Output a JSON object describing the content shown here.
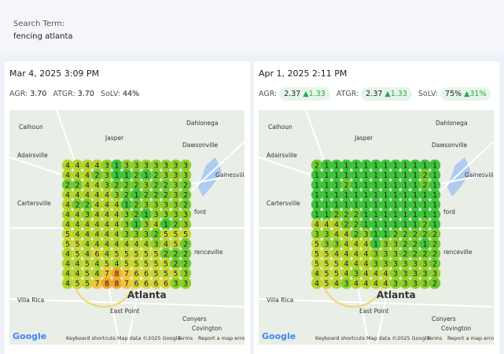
{
  "search": {
    "label": "Search Term:",
    "term": "fencing atlanta"
  },
  "rank_colors": {
    "1": "#3ec43a",
    "2": "#6fcb2e",
    "3": "#8fd12a",
    "4": "#b3d52c",
    "5": "#c6d836",
    "6": "#d9d53c",
    "7": "#f1c53b",
    "8": "#f5a52a"
  },
  "map": {
    "places": [
      "Calhoun",
      "Jasper",
      "Dahlonega",
      "Dawsonville",
      "Adairsville",
      "Gainesville",
      "Cartersville",
      "ford",
      "renceville",
      "Atlanta",
      "East Point",
      "Villa Rica",
      "Conyers",
      "Covington"
    ],
    "footer": [
      "Google",
      "Keyboard shortcuts",
      "Map data ©2025 Google",
      "Terms",
      "Report a map error"
    ]
  },
  "panels": [
    {
      "date": "Mar 4, 2025 3:09 PM",
      "metrics": [
        {
          "label": "AGR:",
          "value": "3.70"
        },
        {
          "label": "ATGR:",
          "value": "3.70"
        },
        {
          "label": "SoLV:",
          "value": "44%"
        }
      ],
      "grid": [
        [
          4,
          4,
          4,
          4,
          3,
          1,
          3,
          3,
          3,
          3,
          3,
          3,
          3
        ],
        [
          4,
          4,
          4,
          2,
          3,
          1,
          1,
          2,
          1,
          2,
          3,
          3,
          3
        ],
        [
          2,
          2,
          4,
          4,
          3,
          2,
          2,
          2,
          3,
          2,
          2,
          3,
          2
        ],
        [
          4,
          4,
          4,
          4,
          4,
          3,
          2,
          1,
          2,
          2,
          2,
          3,
          2
        ],
        [
          4,
          2,
          2,
          4,
          4,
          4,
          1,
          2,
          3,
          3,
          3,
          3,
          2
        ],
        [
          4,
          4,
          3,
          4,
          4,
          4,
          3,
          2,
          1,
          3,
          3,
          3,
          3
        ],
        [
          4,
          4,
          4,
          4,
          4,
          4,
          3,
          1,
          3,
          4,
          1,
          2,
          3
        ],
        [
          5,
          4,
          4,
          4,
          4,
          4,
          3,
          3,
          3,
          2,
          5,
          5,
          5
        ],
        [
          5,
          5,
          4,
          4,
          4,
          4,
          4,
          4,
          4,
          3,
          4,
          5,
          2
        ],
        [
          4,
          5,
          4,
          6,
          4,
          5,
          5,
          5,
          5,
          5,
          2,
          2,
          2
        ],
        [
          4,
          4,
          5,
          4,
          5,
          4,
          5,
          5,
          5,
          5,
          5,
          2,
          2
        ],
        [
          4,
          4,
          5,
          4,
          7,
          8,
          7,
          6,
          6,
          5,
          5,
          5,
          3
        ],
        [
          4,
          5,
          5,
          7,
          8,
          8,
          7,
          6,
          6,
          6,
          6,
          3,
          3
        ]
      ]
    },
    {
      "date": "Apr 1, 2025 2:11 PM",
      "metrics": [
        {
          "label": "AGR:",
          "value": "2.37",
          "change": "1.33"
        },
        {
          "label": "ATGR:",
          "value": "2.37",
          "change": "1.33"
        },
        {
          "label": "SoLV:",
          "value": "75%",
          "change": "31%"
        }
      ],
      "grid": [
        [
          2,
          1,
          1,
          1,
          1,
          1,
          1,
          1,
          1,
          1,
          1,
          1,
          1
        ],
        [
          1,
          1,
          1,
          1,
          1,
          1,
          1,
          1,
          1,
          1,
          1,
          2,
          1
        ],
        [
          1,
          1,
          1,
          2,
          1,
          1,
          1,
          1,
          1,
          1,
          1,
          2,
          1
        ],
        [
          1,
          1,
          1,
          1,
          1,
          1,
          1,
          1,
          1,
          1,
          1,
          1,
          1
        ],
        [
          1,
          1,
          1,
          1,
          1,
          1,
          1,
          1,
          1,
          1,
          1,
          1,
          1
        ],
        [
          1,
          1,
          2,
          2,
          2,
          1,
          1,
          1,
          1,
          1,
          1,
          1,
          1
        ],
        [
          4,
          4,
          4,
          2,
          2,
          1,
          1,
          1,
          1,
          1,
          1,
          2,
          1
        ],
        [
          3,
          3,
          4,
          4,
          2,
          3,
          1,
          1,
          2,
          2,
          2,
          2,
          2
        ],
        [
          5,
          3,
          3,
          4,
          4,
          4,
          1,
          3,
          3,
          2,
          2,
          1,
          2
        ],
        [
          5,
          5,
          4,
          4,
          4,
          4,
          3,
          3,
          3,
          2,
          2,
          2,
          2
        ],
        [
          5,
          5,
          5,
          4,
          4,
          4,
          3,
          3,
          3,
          3,
          3,
          3,
          2
        ],
        [
          4,
          5,
          5,
          4,
          3,
          4,
          4,
          4,
          3,
          3,
          3,
          3,
          3
        ],
        [
          4,
          5,
          4,
          3,
          4,
          4,
          4,
          4,
          3,
          3,
          3,
          3,
          2
        ]
      ]
    }
  ]
}
